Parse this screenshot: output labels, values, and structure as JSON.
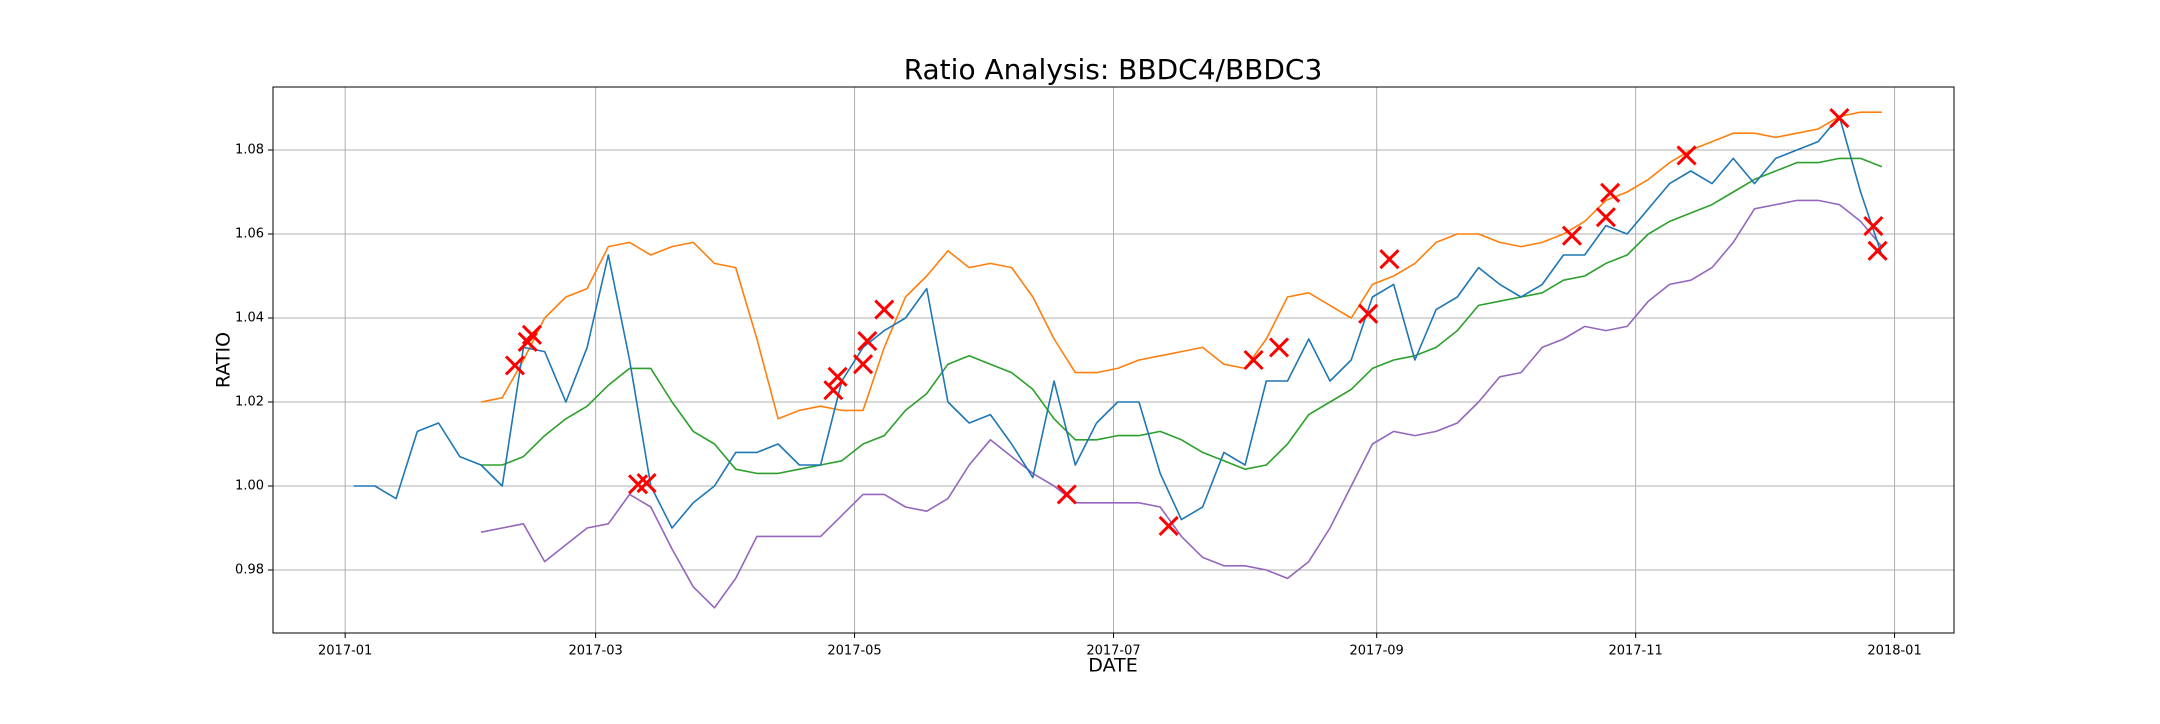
{
  "chart_data": {
    "type": "line",
    "title": "Ratio Analysis: BBDC4/BBDC3",
    "x_label": "DATE",
    "y_label": "RATIO",
    "grid": true,
    "xlim": [
      -17,
      379
    ],
    "ylim": [
      0.965,
      1.095
    ],
    "xticks": [
      {
        "value": 0,
        "label": "2017-01"
      },
      {
        "value": 59,
        "label": "2017-03"
      },
      {
        "value": 120,
        "label": "2017-05"
      },
      {
        "value": 181,
        "label": "2017-07"
      },
      {
        "value": 243,
        "label": "2017-09"
      },
      {
        "value": 304,
        "label": "2017-11"
      },
      {
        "value": 365,
        "label": "2018-01"
      }
    ],
    "yticks": [
      0.98,
      {
        "value": 1,
        "label": "1.00"
      },
      1.02,
      1.04,
      1.06,
      1.08
    ],
    "x": [
      2,
      7,
      12,
      17,
      22,
      27,
      32,
      37,
      42,
      47,
      52,
      57,
      62,
      67,
      72,
      77,
      82,
      87,
      92,
      97,
      102,
      107,
      112,
      117,
      122,
      127,
      132,
      137,
      142,
      147,
      152,
      157,
      162,
      167,
      172,
      177,
      182,
      187,
      192,
      197,
      202,
      207,
      212,
      217,
      222,
      227,
      232,
      237,
      242,
      247,
      252,
      257,
      262,
      267,
      272,
      277,
      282,
      287,
      292,
      297,
      302,
      307,
      312,
      317,
      322,
      327,
      332,
      337,
      342,
      347,
      352,
      357,
      362
    ],
    "series": [
      {
        "color": "#ff7f0e",
        "values": [
          null,
          null,
          null,
          null,
          null,
          null,
          1.02,
          1.021,
          1.03,
          1.04,
          1.045,
          1.047,
          1.057,
          1.058,
          1.055,
          1.057,
          1.058,
          1.053,
          1.052,
          1.035,
          1.016,
          1.018,
          1.019,
          1.018,
          1.018,
          1.033,
          1.045,
          1.05,
          1.056,
          1.052,
          1.053,
          1.052,
          1.045,
          1.035,
          1.027,
          1.027,
          1.028,
          1.03,
          1.031,
          1.032,
          1.033,
          1.029,
          1.028,
          1.035,
          1.045,
          1.046,
          1.043,
          1.04,
          1.048,
          1.05,
          1.053,
          1.058,
          1.06,
          1.06,
          1.058,
          1.057,
          1.058,
          1.06,
          1.063,
          1.068,
          1.07,
          1.073,
          1.077,
          1.08,
          1.082,
          1.084,
          1.084,
          1.083,
          1.084,
          1.085,
          1.088,
          1.089,
          1.089
        ]
      },
      {
        "color": "#2ca02c",
        "values": [
          null,
          null,
          null,
          null,
          null,
          null,
          1.005,
          1.005,
          1.007,
          1.012,
          1.016,
          1.019,
          1.024,
          1.028,
          1.028,
          1.02,
          1.013,
          1.01,
          1.004,
          1.003,
          1.003,
          1.004,
          1.005,
          1.006,
          1.01,
          1.012,
          1.018,
          1.022,
          1.029,
          1.031,
          1.029,
          1.027,
          1.023,
          1.016,
          1.011,
          1.011,
          1.012,
          1.012,
          1.013,
          1.011,
          1.008,
          1.006,
          1.004,
          1.005,
          1.01,
          1.017,
          1.02,
          1.023,
          1.028,
          1.03,
          1.031,
          1.033,
          1.037,
          1.043,
          1.044,
          1.045,
          1.046,
          1.049,
          1.05,
          1.053,
          1.055,
          1.06,
          1.063,
          1.065,
          1.067,
          1.07,
          1.073,
          1.075,
          1.077,
          1.077,
          1.078,
          1.078,
          1.076
        ]
      },
      {
        "color": "#9467bd",
        "values": [
          null,
          null,
          null,
          null,
          null,
          null,
          0.989,
          0.99,
          0.991,
          0.982,
          0.986,
          0.99,
          0.991,
          0.998,
          0.995,
          0.985,
          0.976,
          0.971,
          0.978,
          0.988,
          0.988,
          0.988,
          0.988,
          0.993,
          0.998,
          0.998,
          0.995,
          0.994,
          0.997,
          1.005,
          1.011,
          1.007,
          1.003,
          1.0,
          0.996,
          0.996,
          0.996,
          0.996,
          0.995,
          0.988,
          0.983,
          0.981,
          0.981,
          0.98,
          0.978,
          0.982,
          0.99,
          1.0,
          1.01,
          1.013,
          1.012,
          1.013,
          1.015,
          1.02,
          1.026,
          1.027,
          1.033,
          1.035,
          1.038,
          1.037,
          1.038,
          1.044,
          1.048,
          1.049,
          1.052,
          1.058,
          1.066,
          1.067,
          1.068,
          1.068,
          1.067,
          1.063,
          1.057
        ]
      },
      {
        "color": "#1f77b4",
        "values": [
          1.0,
          1.0,
          0.997,
          1.013,
          1.015,
          1.007,
          1.005,
          1.0,
          1.033,
          1.032,
          1.02,
          1.033,
          1.055,
          1.03,
          1.0,
          0.99,
          0.996,
          1.0,
          1.008,
          1.008,
          1.01,
          1.005,
          1.005,
          1.025,
          1.033,
          1.037,
          1.04,
          1.047,
          1.02,
          1.015,
          1.017,
          1.01,
          1.002,
          1.025,
          1.005,
          1.015,
          1.02,
          1.02,
          1.003,
          0.992,
          0.995,
          1.008,
          1.005,
          1.025,
          1.025,
          1.035,
          1.025,
          1.03,
          1.045,
          1.048,
          1.03,
          1.042,
          1.045,
          1.052,
          1.048,
          1.045,
          1.048,
          1.055,
          1.055,
          1.062,
          1.06,
          1.066,
          1.072,
          1.075,
          1.072,
          1.078,
          1.072,
          1.078,
          1.08,
          1.082,
          1.088,
          1.07,
          1.055
        ]
      }
    ],
    "signals": {
      "color": "#ff0000",
      "x": [
        40,
        43,
        44,
        69,
        71,
        115,
        116,
        122,
        123,
        127,
        170,
        194,
        214,
        220,
        241,
        246,
        289,
        297,
        298,
        316,
        352,
        360,
        361
      ],
      "values": [
        1.0287,
        1.0343,
        1.036,
        1.0004,
        1.0007,
        1.0228,
        1.026,
        1.029,
        1.0345,
        1.042,
        0.998,
        0.9905,
        1.03,
        1.033,
        1.041,
        1.054,
        1.0596,
        1.064,
        1.0698,
        1.0787,
        1.0876,
        1.0619,
        1.056
      ]
    }
  }
}
